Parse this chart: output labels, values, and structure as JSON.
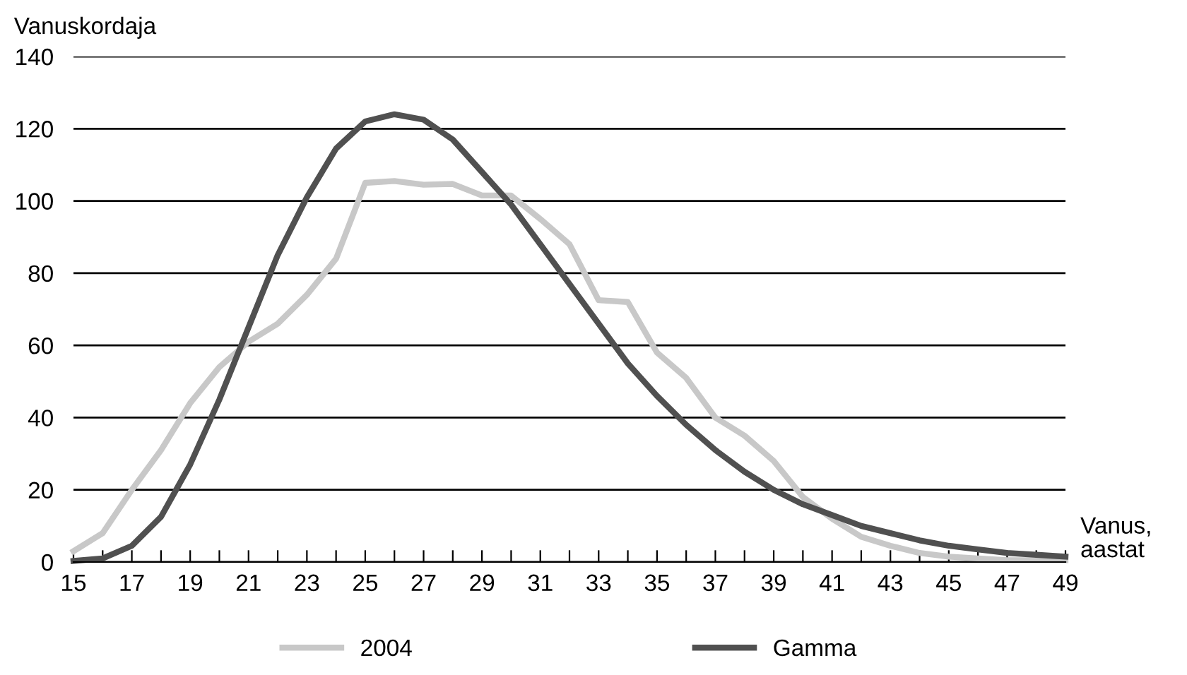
{
  "chart_data": {
    "type": "line",
    "ylabel": "Vanuskordaja",
    "xlabel": "Vanus,\naastat",
    "x": [
      15,
      16,
      17,
      18,
      19,
      20,
      21,
      22,
      23,
      24,
      25,
      26,
      27,
      28,
      29,
      30,
      31,
      32,
      33,
      34,
      35,
      36,
      37,
      38,
      39,
      40,
      41,
      42,
      43,
      44,
      45,
      46,
      47,
      48,
      49
    ],
    "series": [
      {
        "name": "2004",
        "color": "#c8c8c8",
        "values": [
          3,
          8,
          20,
          31,
          44,
          54,
          61,
          66,
          74,
          84,
          105,
          105.5,
          104.5,
          104.7,
          101.5,
          101.5,
          95,
          88,
          72.5,
          72,
          58,
          51,
          40,
          35,
          28,
          18,
          12,
          7,
          4.5,
          2.5,
          1.5,
          1,
          0.5,
          0.5,
          0.5
        ]
      },
      {
        "name": "Gamma",
        "color": "#505050",
        "values": [
          0.3,
          1,
          4.5,
          12.5,
          27,
          45,
          65,
          85,
          101,
          114.5,
          122,
          124,
          122.5,
          117,
          108,
          99,
          88,
          77,
          66,
          55,
          46,
          38,
          31,
          25,
          20,
          16,
          13,
          10,
          8,
          6,
          4.5,
          3.5,
          2.5,
          2,
          1.5
        ]
      }
    ],
    "xlim": [
      15,
      49
    ],
    "ylim": [
      0,
      140
    ],
    "xticks": [
      15,
      {
        "value": 16,
        "label": null
      },
      17,
      {
        "value": 18,
        "label": null
      },
      19,
      {
        "value": 20,
        "label": null
      },
      21,
      {
        "value": 22,
        "label": null
      },
      23,
      {
        "value": 24,
        "label": null
      },
      25,
      {
        "value": 26,
        "label": null
      },
      27,
      {
        "value": 28,
        "label": null
      },
      29,
      {
        "value": 30,
        "label": null
      },
      31,
      {
        "value": 32,
        "label": null
      },
      33,
      {
        "value": 34,
        "label": null
      },
      35,
      {
        "value": 36,
        "label": null
      },
      37,
      {
        "value": 38,
        "label": null
      },
      39,
      {
        "value": 40,
        "label": null
      },
      41,
      {
        "value": 42,
        "label": null
      },
      43,
      {
        "value": 44,
        "label": null
      },
      45,
      {
        "value": 46,
        "label": null
      },
      47,
      {
        "value": 48,
        "label": null
      },
      49
    ],
    "yticks": [
      0,
      20,
      40,
      60,
      80,
      100,
      120,
      140
    ],
    "grid": "y",
    "legend": "bottom",
    "marker": "none",
    "line_style": "solid"
  }
}
